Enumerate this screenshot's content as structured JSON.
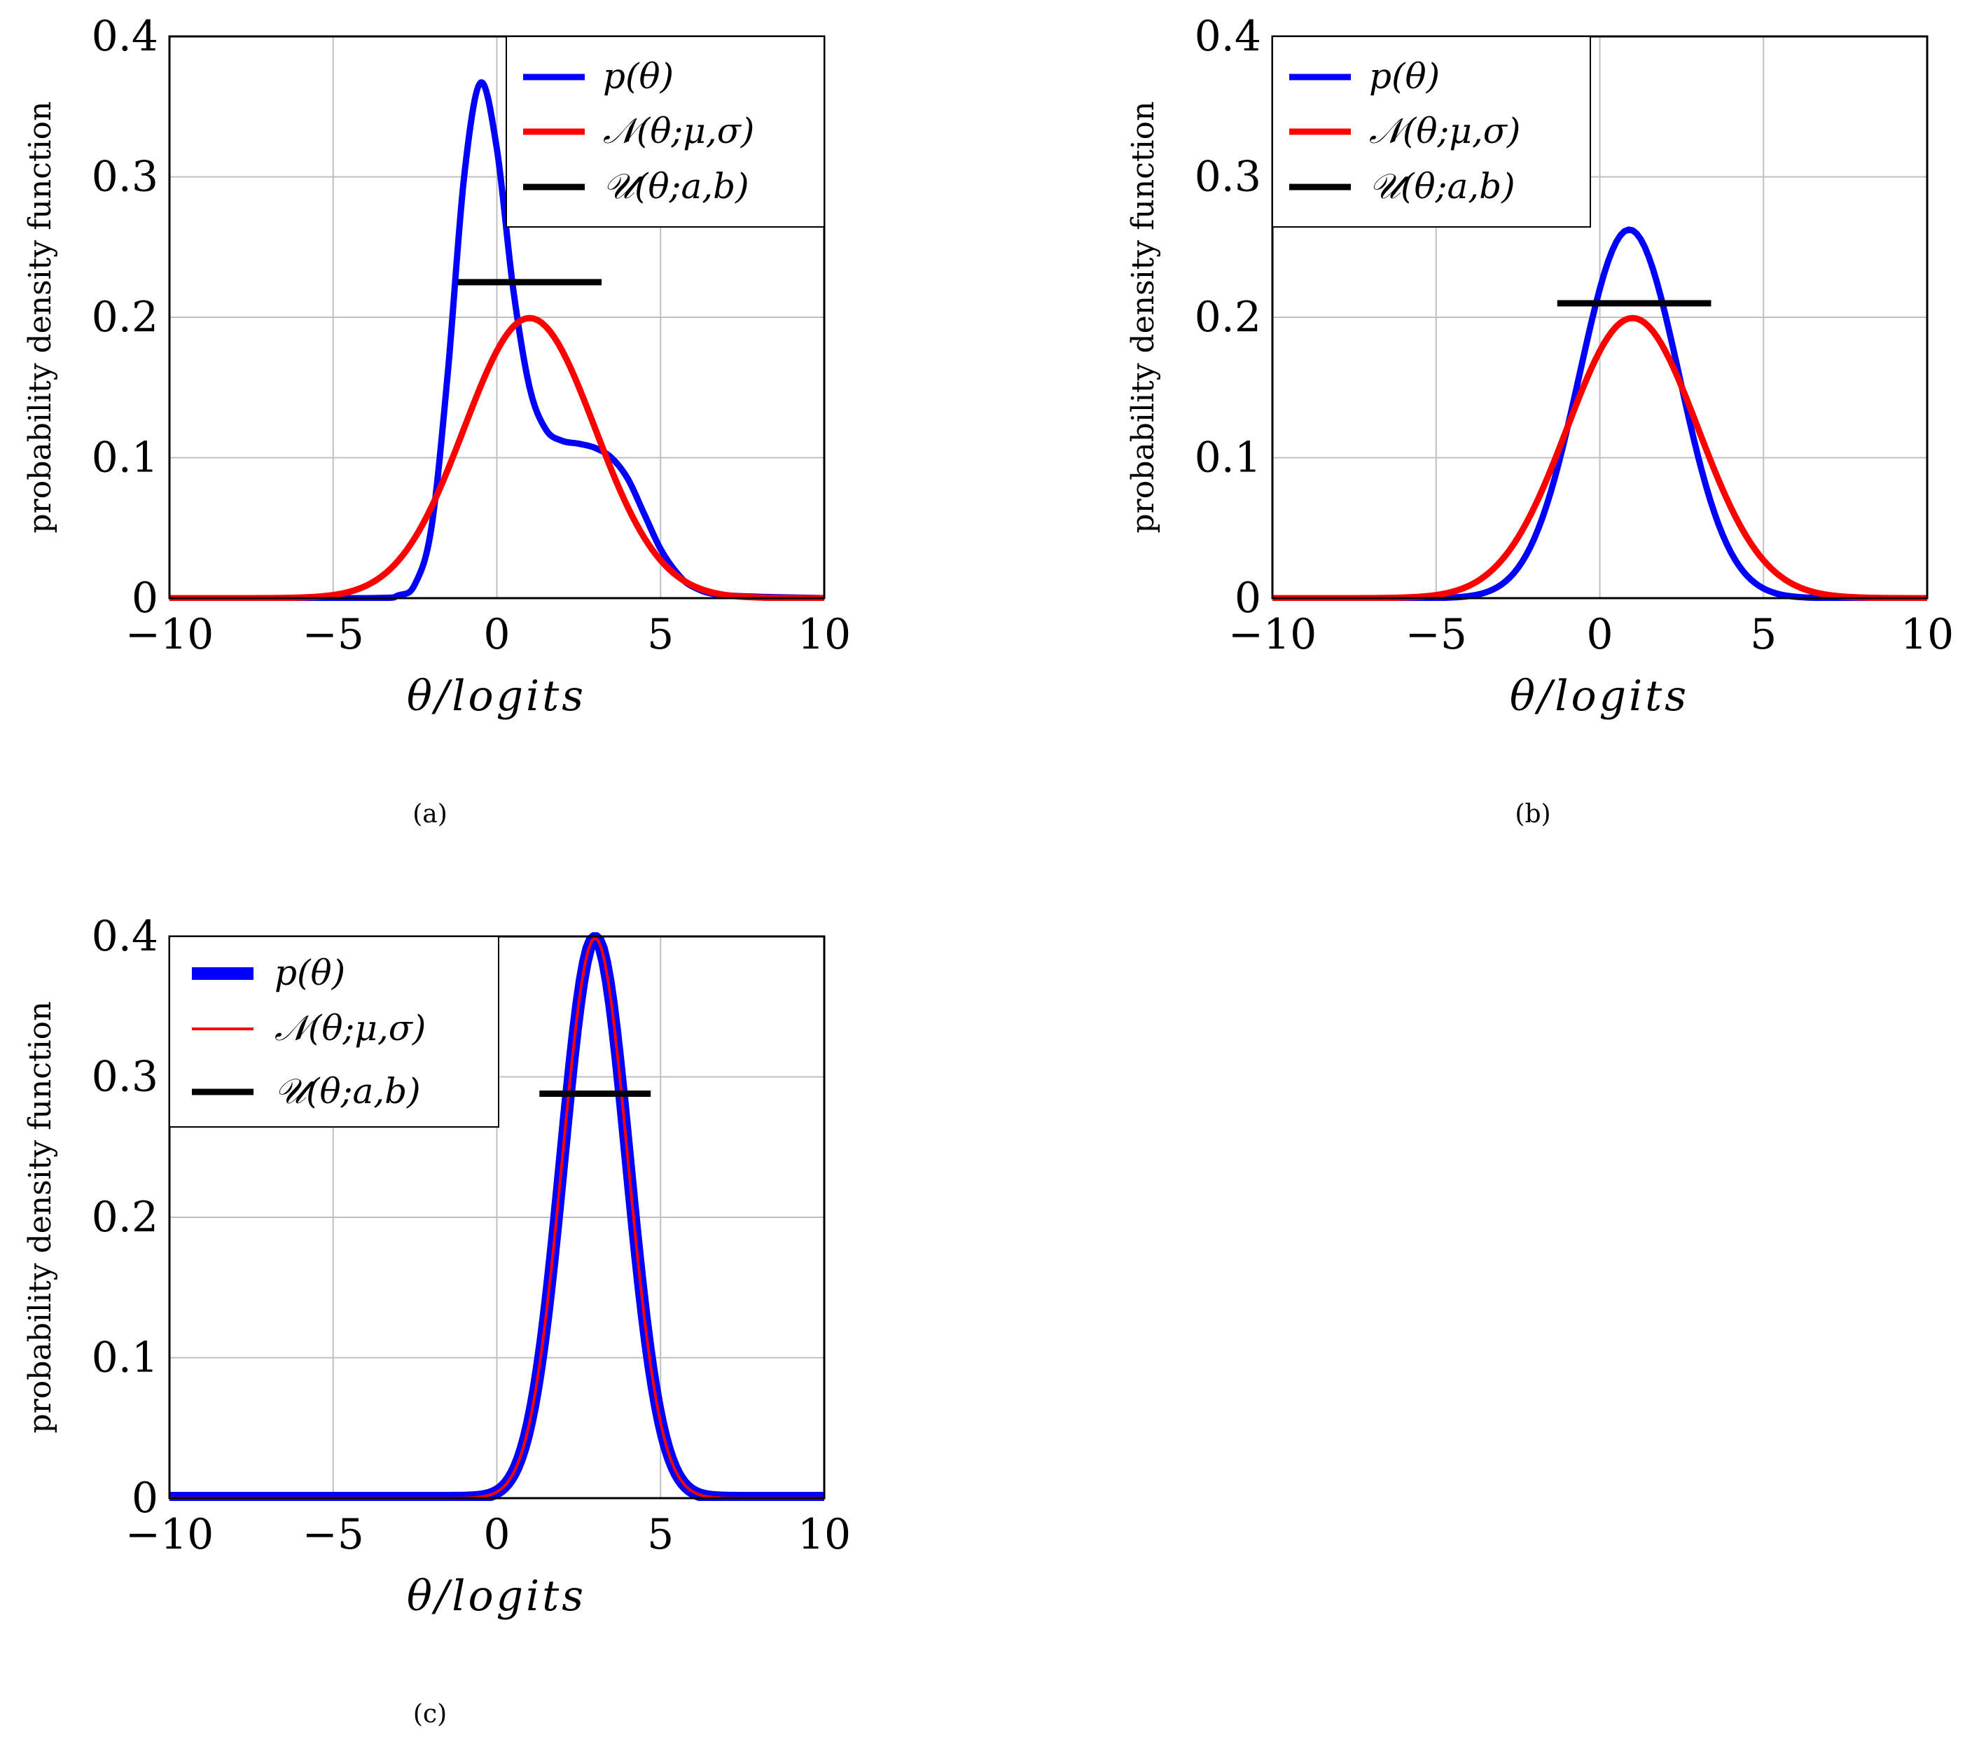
{
  "figure": {
    "colors": {
      "p": "#0000ff",
      "normal": "#ff0000",
      "uniform": "#000000",
      "grid": "#bfbfbf"
    }
  },
  "chart_data": [
    {
      "type": "line",
      "caption": "(a)",
      "xlabel": "θ/logits",
      "ylabel": "probability density function",
      "xlim": [
        -10,
        10
      ],
      "ylim": [
        0,
        0.4
      ],
      "xticks": [
        -10,
        -5,
        0,
        5,
        10
      ],
      "xtick_labels": [
        "−10",
        "−5",
        "0",
        "5",
        "10"
      ],
      "yticks": [
        0,
        0.1,
        0.2,
        0.3,
        0.4
      ],
      "ytick_labels": [
        "0",
        "0.1",
        "0.2",
        "0.3",
        "0.4"
      ],
      "grid": true,
      "legend": {
        "position": "top-right",
        "entries": [
          {
            "key": "p",
            "label": "p(θ)",
            "style": "thick"
          },
          {
            "key": "normal",
            "label": "𝒩(θ;μ,σ)",
            "style": "thick"
          },
          {
            "key": "uniform",
            "label": "𝒰(θ;a,b)",
            "style": "thick"
          }
        ]
      },
      "series": [
        {
          "name": "p(θ)",
          "key": "p",
          "x": [
            -10,
            -4,
            -3,
            -2.5,
            -2,
            -1.5,
            -1,
            -0.5,
            0,
            0.5,
            1,
            1.5,
            2,
            2.5,
            3,
            3.5,
            4,
            4.5,
            5,
            5.5,
            6,
            7,
            10
          ],
          "y": [
            0,
            0,
            0.002,
            0.01,
            0.05,
            0.16,
            0.3,
            0.367,
            0.32,
            0.22,
            0.15,
            0.12,
            0.112,
            0.11,
            0.107,
            0.1,
            0.085,
            0.06,
            0.035,
            0.018,
            0.008,
            0.002,
            0
          ]
        },
        {
          "name": "𝒩(θ;μ,σ)",
          "key": "normal",
          "mu": 1,
          "sigma": 2,
          "samples": 161
        }
      ],
      "uniform": {
        "x0": -1.2,
        "x1": 3.2,
        "y": 0.225
      }
    },
    {
      "type": "line",
      "caption": "(b)",
      "xlabel": "θ/logits",
      "ylabel": "probability density function",
      "xlim": [
        -10,
        10
      ],
      "ylim": [
        0,
        0.4
      ],
      "xticks": [
        -10,
        -5,
        0,
        5,
        10
      ],
      "xtick_labels": [
        "−10",
        "−5",
        "0",
        "5",
        "10"
      ],
      "yticks": [
        0,
        0.1,
        0.2,
        0.3,
        0.4
      ],
      "ytick_labels": [
        "0",
        "0.1",
        "0.2",
        "0.3",
        "0.4"
      ],
      "grid": true,
      "legend": {
        "position": "top-left",
        "entries": [
          {
            "key": "p",
            "label": "p(θ)",
            "style": "thick"
          },
          {
            "key": "normal",
            "label": "𝒩(θ;μ,σ)",
            "style": "thick"
          },
          {
            "key": "uniform",
            "label": "𝒰(θ;a,b)",
            "style": "thick"
          }
        ]
      },
      "series": [
        {
          "name": "p(θ)",
          "key": "p",
          "mu": 0.9,
          "sigma": 1.52,
          "samples": 161
        },
        {
          "name": "𝒩(θ;μ,σ)",
          "key": "normal",
          "mu": 1,
          "sigma": 2,
          "samples": 161
        }
      ],
      "uniform": {
        "x0": -1.3,
        "x1": 3.4,
        "y": 0.21
      }
    },
    {
      "type": "line",
      "caption": "(c)",
      "xlabel": "θ/logits",
      "ylabel": "probability density function",
      "xlim": [
        -10,
        10
      ],
      "ylim": [
        0,
        0.4
      ],
      "xticks": [
        -10,
        -5,
        0,
        5,
        10
      ],
      "xtick_labels": [
        "−10",
        "−5",
        "0",
        "5",
        "10"
      ],
      "yticks": [
        0,
        0.1,
        0.2,
        0.3,
        0.4
      ],
      "ytick_labels": [
        "0",
        "0.1",
        "0.2",
        "0.3",
        "0.4"
      ],
      "grid": true,
      "legend": {
        "position": "top-left",
        "entries": [
          {
            "key": "p",
            "label": "p(θ)",
            "style": "extra-thick"
          },
          {
            "key": "normal",
            "label": "𝒩(θ;μ,σ)",
            "style": "thin"
          },
          {
            "key": "uniform",
            "label": "𝒰(θ;a,b)",
            "style": "thick"
          }
        ]
      },
      "series": [
        {
          "name": "p(θ)",
          "key": "p",
          "mu": 3,
          "sigma": 1,
          "samples": 201
        },
        {
          "name": "𝒩(θ;μ,σ)",
          "key": "normal",
          "mu": 3,
          "sigma": 1,
          "samples": 201
        }
      ],
      "uniform": {
        "x0": 1.3,
        "x1": 4.7,
        "y": 0.288
      }
    }
  ]
}
